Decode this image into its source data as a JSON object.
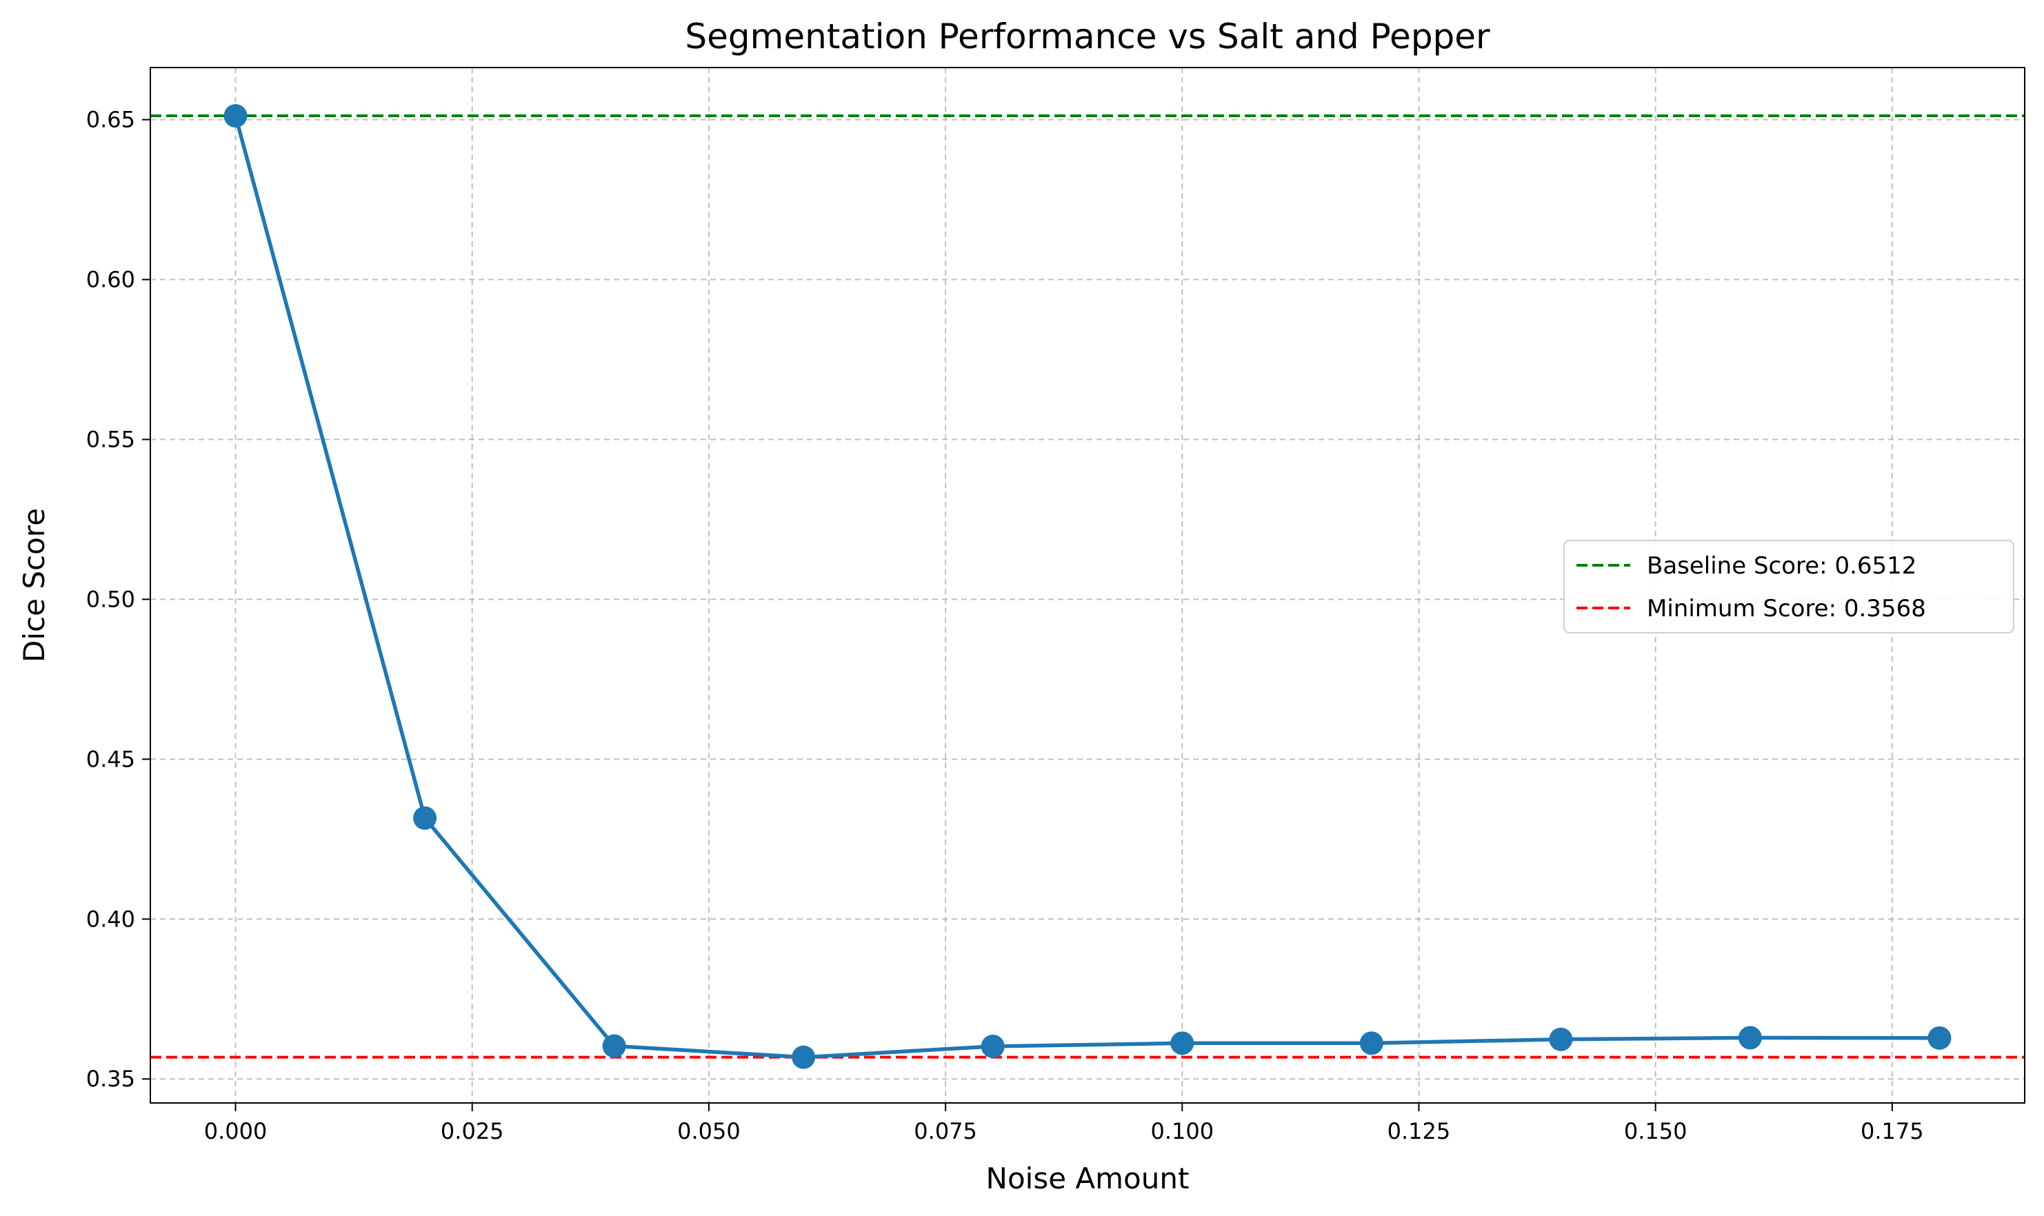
{
  "chart_data": {
    "type": "line",
    "title": "Segmentation Performance vs Salt and Pepper",
    "xlabel": "Noise Amount",
    "ylabel": "Dice Score",
    "xlim": [
      -0.009,
      0.189
    ],
    "ylim": [
      0.3425,
      0.6663
    ],
    "xticks": [
      "0.000",
      "0.025",
      "0.050",
      "0.075",
      "0.100",
      "0.125",
      "0.150",
      "0.175"
    ],
    "xtick_values": [
      0.0,
      0.025,
      0.05,
      0.075,
      0.1,
      0.125,
      0.15,
      0.175
    ],
    "yticks": [
      "0.35",
      "0.40",
      "0.45",
      "0.50",
      "0.55",
      "0.60",
      "0.65"
    ],
    "ytick_values": [
      0.35,
      0.4,
      0.45,
      0.5,
      0.55,
      0.6,
      0.65
    ],
    "grid": true,
    "legend_position": "center-right",
    "series": [
      {
        "x": [
          0.0,
          0.02,
          0.04,
          0.06,
          0.08,
          0.1,
          0.12,
          0.14,
          0.16,
          0.18
        ],
        "values": [
          0.6512,
          0.4316,
          0.3603,
          0.3568,
          0.3602,
          0.3612,
          0.3612,
          0.3624,
          0.3629,
          0.3628
        ],
        "color": "#1f77b4"
      }
    ],
    "reference_lines": [
      {
        "name": "Baseline Score: 0.6512",
        "value": 0.6512,
        "color": "#008000",
        "style": "dashed"
      },
      {
        "name": "Minimum Score: 0.3568",
        "value": 0.3568,
        "color": "#ff0000",
        "style": "dashed"
      }
    ]
  }
}
